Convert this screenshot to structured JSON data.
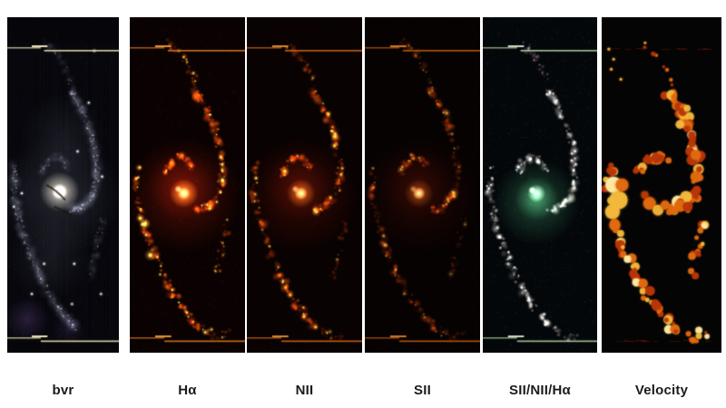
{
  "figure": {
    "panels": [
      {
        "label": "bvr",
        "style": "bvr",
        "intensity": 1,
        "colors": {
          "bg": "#05050a",
          "noise": "#8890a8",
          "line": "#d9d2a2",
          "line_bright": "#f2ecc4",
          "halo": "#8c91a5",
          "arm": "#aab0c8",
          "knot": "#dfe4f2",
          "pink": "#e6a8c0",
          "nucleus_core": "#fffbe8",
          "nucleus_glow": "#f0e6c8",
          "haze": "#7850a0",
          "star": "#ffffff"
        }
      },
      {
        "label": "Hα",
        "style": "emission",
        "intensity": 1,
        "colors": {
          "bg": "#0a0202",
          "noise": "#a03010",
          "line": "#c87020",
          "line_bright": "#e89a40",
          "diffuse": "#5a0e04",
          "knot_dim": "#801f06",
          "knot_mid": "#d2500a",
          "knot_bright": "#ffd24a",
          "nucleus_core": "#fff2c0",
          "nucleus_glow": "#ff9c28"
        }
      },
      {
        "label": "NII",
        "style": "emission",
        "intensity": 0.8,
        "colors": {
          "bg": "#090202",
          "noise": "#982c0e",
          "line": "#c06018",
          "line_bright": "#e08c34",
          "diffuse": "#4a0c03",
          "knot_dim": "#701b05",
          "knot_mid": "#c24408",
          "knot_bright": "#ffc43e",
          "nucleus_core": "#ffe9a8",
          "nucleus_glow": "#f08820"
        }
      },
      {
        "label": "SII",
        "style": "emission",
        "intensity": 0.62,
        "colors": {
          "bg": "#070202",
          "noise": "#8a280c",
          "line": "#b05410",
          "line_bright": "#d27c28",
          "diffuse": "#3c0a03",
          "knot_dim": "#641805",
          "knot_mid": "#aa3a07",
          "knot_bright": "#f0b236",
          "nucleus_core": "#ffdf98",
          "nucleus_glow": "#d87818"
        }
      },
      {
        "label": "SII/NII/Hα",
        "style": "ratio",
        "intensity": 1,
        "colors": {
          "bg": "#04070a",
          "noise": "#8a9a8a",
          "line": "#b9d2a4",
          "line_bright": "#eaffe0",
          "green_outer": "#2a6e46",
          "green_inner": "#5ab478",
          "knot": "#d8d2c6",
          "knot_bright": "#ffffff",
          "knot_dim": "#9a8f88",
          "pink": "#c490a0",
          "nucleus": "#eaffe8",
          "red_speck": "#a04028"
        }
      },
      {
        "label": "Velocity",
        "style": "velocity",
        "intensity": 1,
        "colors": {
          "bg": "#040404",
          "line": "#5a1408",
          "red": "#b83508",
          "orange": "#e06a10",
          "yellow": "#f2b83c",
          "pale_yellow": "#ffe9a0"
        }
      }
    ]
  },
  "page": {
    "background": "#ffffff",
    "label_color": "#1b1b1b"
  }
}
